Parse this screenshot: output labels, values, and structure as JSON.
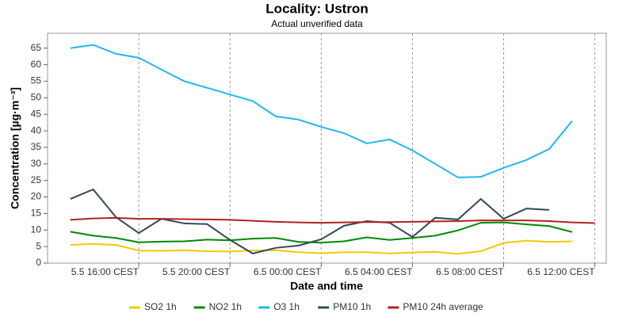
{
  "chart_data": {
    "type": "line",
    "title": "Locality: Ustron",
    "subtitle": "Actual unverified data",
    "x_label": "Date and time",
    "y_label": "Concentration [µg·m⁻³]",
    "x": [
      13,
      14,
      15,
      16,
      17,
      18,
      19,
      20,
      21,
      22,
      23,
      24,
      25,
      26,
      27,
      28,
      29,
      30,
      31,
      32,
      33,
      34,
      35,
      36
    ],
    "xlim": [
      12,
      36.5
    ],
    "xticks": [
      {
        "value": 16,
        "label": "5.5 16:00 CEST"
      },
      {
        "value": 20,
        "label": "5.5 20:00 CEST"
      },
      {
        "value": 24,
        "label": "6.5 00:00 CEST"
      },
      {
        "value": 28,
        "label": "6.5 04:00 CEST"
      },
      {
        "value": 32,
        "label": "6.5 08:00 CEST"
      },
      {
        "value": 36,
        "label": "6.5 12:00 CEST"
      }
    ],
    "ylim": [
      0,
      69.5
    ],
    "yticks": [
      0,
      5,
      10,
      15,
      20,
      25,
      30,
      35,
      40,
      45,
      50,
      55,
      60,
      65
    ],
    "grid": true,
    "legend": "bottom",
    "series": [
      {
        "name": "SO2 1h",
        "color": "#f5c800",
        "values": [
          5.5,
          5.8,
          5.5,
          3.8,
          3.7,
          3.9,
          3.6,
          3.5,
          3.8,
          3.9,
          3.3,
          3.0,
          3.3,
          3.3,
          2.9,
          3.2,
          3.4,
          2.8,
          3.6,
          6.1,
          6.8,
          6.4,
          6.6,
          null
        ]
      },
      {
        "name": "NO2 1h",
        "color": "#008a00",
        "values": [
          9.5,
          8.3,
          7.6,
          6.3,
          6.5,
          6.6,
          7.1,
          6.9,
          7.4,
          7.6,
          6.4,
          6.2,
          6.6,
          7.8,
          7.0,
          7.6,
          8.3,
          9.9,
          12.2,
          12.3,
          11.7,
          11.2,
          9.4,
          null
        ]
      },
      {
        "name": "O3 1h",
        "color": "#1fb8f0",
        "values": [
          65,
          66,
          63.3,
          62.1,
          58.5,
          55,
          53,
          51,
          49,
          44.4,
          43.4,
          41.2,
          39.3,
          36.2,
          37.4,
          34.1,
          30,
          25.9,
          26.1,
          28.8,
          31.2,
          34.5,
          43,
          null
        ]
      },
      {
        "name": "PM10 1h",
        "color": "#34495a",
        "values": [
          19.4,
          22.3,
          13.9,
          9.1,
          13.4,
          12,
          11.8,
          7,
          2.9,
          4.6,
          5.3,
          7.2,
          11.3,
          12.7,
          12.2,
          7.9,
          13.7,
          13.2,
          19.4,
          13.4,
          16.5,
          16.1,
          null,
          null
        ]
      },
      {
        "name": "PM10 24h average",
        "color": "#b22222",
        "values": [
          13.1,
          13.5,
          13.7,
          13.4,
          13.4,
          13.3,
          13.2,
          13.1,
          12.8,
          12.5,
          12.3,
          12.2,
          12.3,
          12.4,
          12.4,
          12.5,
          12.6,
          12.7,
          12.9,
          12.9,
          12.9,
          12.7,
          12.3,
          12.1
        ]
      }
    ]
  }
}
